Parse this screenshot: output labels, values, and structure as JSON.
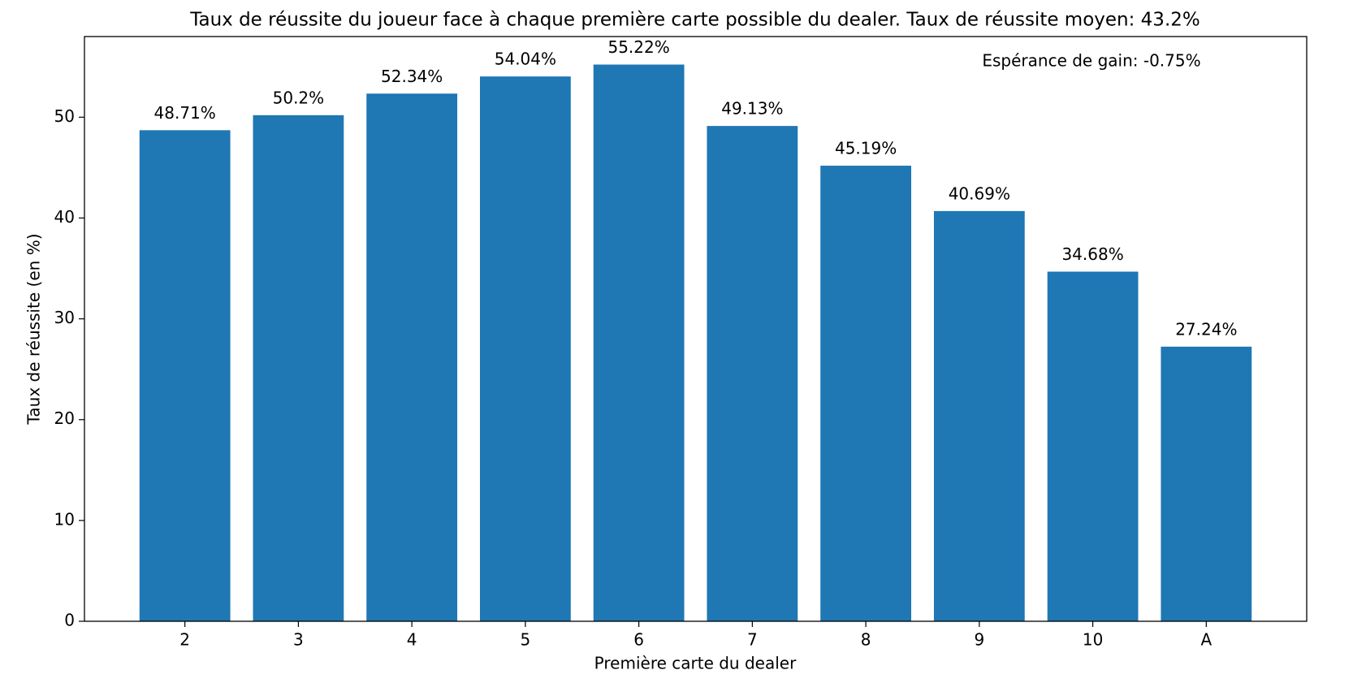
{
  "chart_data": {
    "type": "bar",
    "title": "Taux de réussite du joueur face à chaque première carte possible du dealer. Taux de réussite moyen: 43.2%",
    "annotation": "Espérance de gain: -0.75%",
    "x_label": "Première carte du dealer",
    "y_label": "Taux de réussite (en %)",
    "categories": [
      "2",
      "3",
      "4",
      "5",
      "6",
      "7",
      "8",
      "9",
      "10",
      "A"
    ],
    "values": [
      48.71,
      50.2,
      52.34,
      54.04,
      55.22,
      49.13,
      45.19,
      40.69,
      34.68,
      27.24
    ],
    "value_labels": [
      "48.71%",
      "50.2%",
      "52.34%",
      "54.04%",
      "55.22%",
      "49.13%",
      "45.19%",
      "40.69%",
      "34.68%",
      "27.24%"
    ],
    "color": "#1f77b4",
    "ylim": [
      0,
      58
    ],
    "yticks": [
      0,
      10,
      20,
      30,
      40,
      50
    ],
    "grid": false
  }
}
